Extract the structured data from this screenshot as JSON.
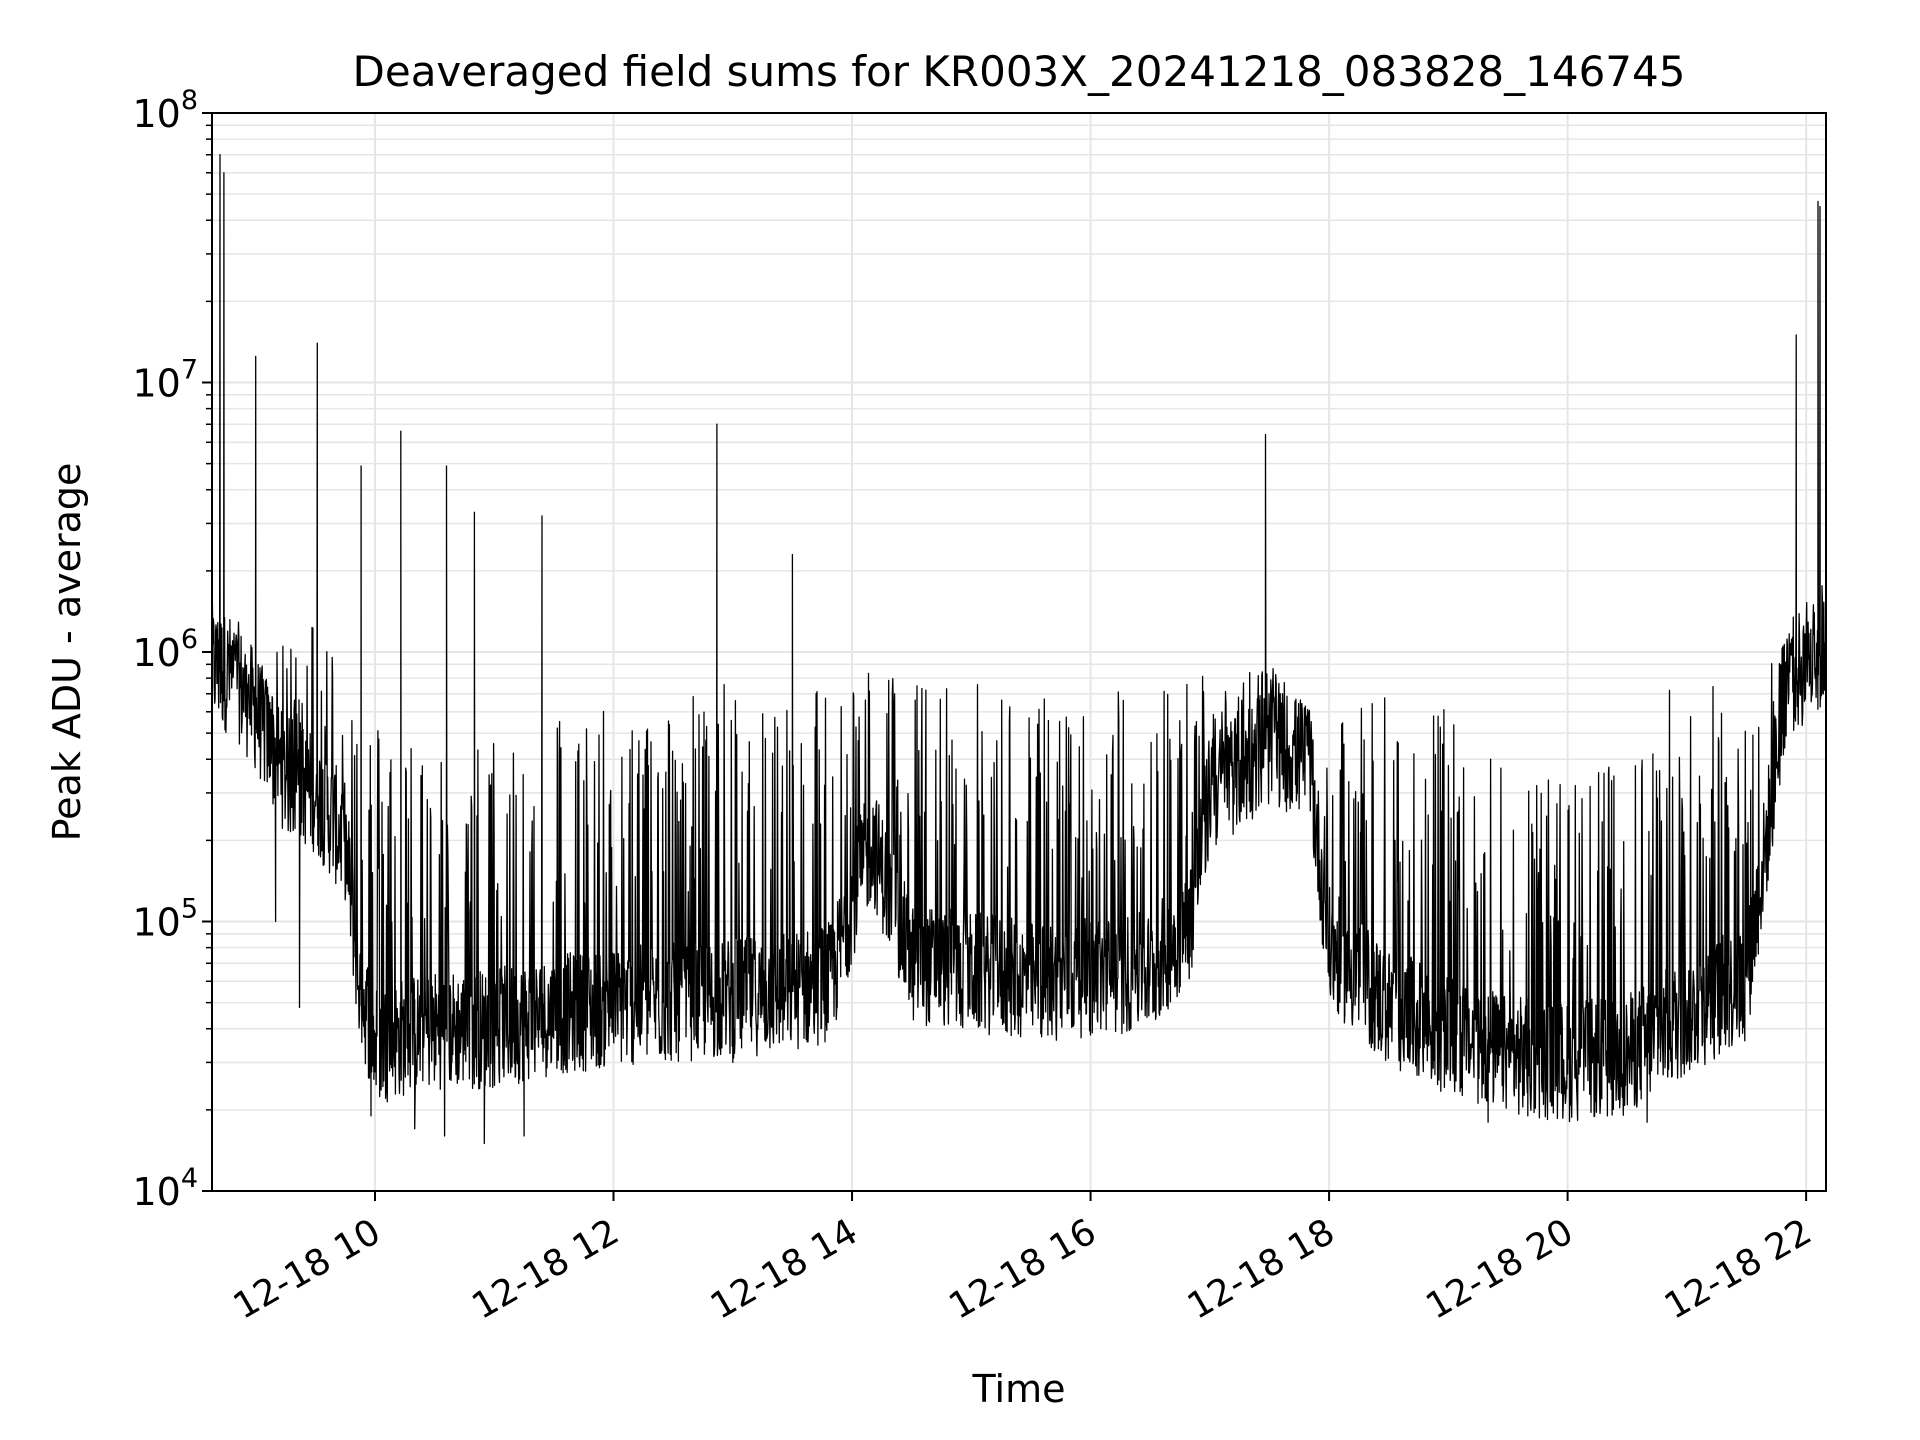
{
  "chart_data": {
    "type": "line",
    "title": "Deaveraged field sums for KR003X_20241218_083828_146745",
    "xlabel": "Time",
    "ylabel": "Peak ADU - average",
    "yscale": "log",
    "ylim": [
      10000,
      100000000
    ],
    "xlim": [
      "12-18 08:38",
      "12-18 22:10"
    ],
    "grid": true,
    "line_color": "#000000",
    "grid_color": "#e6e6e6",
    "x_ticks": [
      {
        "label": "12-18 10",
        "hour": 10
      },
      {
        "label": "12-18 12",
        "hour": 12
      },
      {
        "label": "12-18 14",
        "hour": 14
      },
      {
        "label": "12-18 16",
        "hour": 16
      },
      {
        "label": "12-18 18",
        "hour": 18
      },
      {
        "label": "12-18 20",
        "hour": 20
      },
      {
        "label": "12-18 22",
        "hour": 22
      }
    ],
    "y_ticks": [
      {
        "base": "10",
        "exp": "4",
        "value": 10000
      },
      {
        "base": "10",
        "exp": "5",
        "value": 100000
      },
      {
        "base": "10",
        "exp": "6",
        "value": 1000000
      },
      {
        "base": "10",
        "exp": "7",
        "value": 10000000
      },
      {
        "base": "10",
        "exp": "8",
        "value": 100000000
      }
    ],
    "series": [
      {
        "baseline": [
          [
            "12-18 08:38",
            900000
          ],
          [
            "12-18 08:50",
            800000
          ],
          [
            "12-18 09:00",
            600000
          ],
          [
            "12-18 09:15",
            350000
          ],
          [
            "12-18 09:30",
            300000
          ],
          [
            "12-18 09:45",
            200000
          ],
          [
            "12-18 09:52",
            60000
          ],
          [
            "12-18 10:00",
            35000
          ],
          [
            "12-18 10:30",
            40000
          ],
          [
            "12-18 11:00",
            40000
          ],
          [
            "12-18 11:30",
            45000
          ],
          [
            "12-18 12:00",
            48000
          ],
          [
            "12-18 12:30",
            50000
          ],
          [
            "12-18 13:00",
            52000
          ],
          [
            "12-18 13:30",
            55000
          ],
          [
            "12-18 13:50",
            60000
          ],
          [
            "12-18 14:00",
            120000
          ],
          [
            "12-18 14:10",
            200000
          ],
          [
            "12-18 14:30",
            70000
          ],
          [
            "12-18 15:00",
            65000
          ],
          [
            "12-18 15:30",
            60000
          ],
          [
            "12-18 16:00",
            62000
          ],
          [
            "12-18 16:30",
            65000
          ],
          [
            "12-18 16:50",
            100000
          ],
          [
            "12-18 17:00",
            300000
          ],
          [
            "12-18 17:30",
            450000
          ],
          [
            "12-18 17:50",
            400000
          ],
          [
            "12-18 18:00",
            80000
          ],
          [
            "12-18 18:30",
            48000
          ],
          [
            "12-18 19:00",
            38000
          ],
          [
            "12-18 19:30",
            32000
          ],
          [
            "12-18 20:00",
            30000
          ],
          [
            "12-18 20:30",
            32000
          ],
          [
            "12-18 21:00",
            45000
          ],
          [
            "12-18 21:30",
            60000
          ],
          [
            "12-18 21:40",
            200000
          ],
          [
            "12-18 21:50",
            800000
          ],
          [
            "12-18 22:10",
            1000000
          ]
        ],
        "burst_ceiling": [
          [
            "12-18 08:38",
            1500000
          ],
          [
            "12-18 09:00",
            800000
          ],
          [
            "12-18 09:30",
            1500000
          ],
          [
            "12-18 10:00",
            600000
          ],
          [
            "12-18 10:30",
            500000
          ],
          [
            "12-18 11:00",
            500000
          ],
          [
            "12-18 11:30",
            700000
          ],
          [
            "12-18 12:00",
            600000
          ],
          [
            "12-18 12:30",
            700000
          ],
          [
            "12-18 13:00",
            800000
          ],
          [
            "12-18 13:30",
            700000
          ],
          [
            "12-18 14:00",
            1000000
          ],
          [
            "12-18 14:30",
            800000
          ],
          [
            "12-18 15:00",
            800000
          ],
          [
            "12-18 15:30",
            700000
          ],
          [
            "12-18 16:00",
            700000
          ],
          [
            "12-18 16:30",
            800000
          ],
          [
            "12-18 17:00",
            900000
          ],
          [
            "12-18 17:30",
            900000
          ],
          [
            "12-18 18:00",
            500000
          ],
          [
            "12-18 18:30",
            800000
          ],
          [
            "12-18 19:00",
            600000
          ],
          [
            "12-18 19:30",
            400000
          ],
          [
            "12-18 20:00",
            350000
          ],
          [
            "12-18 20:30",
            400000
          ],
          [
            "12-18 21:00",
            1000000
          ],
          [
            "12-18 21:30",
            700000
          ],
          [
            "12-18 22:10",
            2000000
          ]
        ],
        "spikes": [
          [
            "12-18 08:42",
            70000000
          ],
          [
            "12-18 08:44",
            60000000
          ],
          [
            "12-18 09:00",
            12500000
          ],
          [
            "12-18 09:31",
            14000000
          ],
          [
            "12-18 09:53",
            4900000
          ],
          [
            "12-18 10:13",
            6600000
          ],
          [
            "12-18 10:36",
            4900000
          ],
          [
            "12-18 10:50",
            3300000
          ],
          [
            "12-18 11:24",
            3200000
          ],
          [
            "12-18 12:52",
            7000000
          ],
          [
            "12-18 13:30",
            2300000
          ],
          [
            "12-18 17:28",
            6400000
          ],
          [
            "12-18 21:55",
            15000000
          ],
          [
            "12-18 22:06",
            47000000
          ],
          [
            "12-18 22:07",
            45000000
          ]
        ],
        "dips": [
          [
            "12-18 09:10",
            100000
          ],
          [
            "12-18 09:22",
            48000
          ],
          [
            "12-18 09:58",
            19000
          ],
          [
            "12-18 10:20",
            17000
          ],
          [
            "12-18 10:35",
            16000
          ],
          [
            "12-18 10:55",
            15000
          ],
          [
            "12-18 11:15",
            16000
          ],
          [
            "12-18 13:00",
            30000
          ],
          [
            "12-18 19:20",
            18000
          ],
          [
            "12-18 19:40",
            19000
          ],
          [
            "12-18 20:20",
            19000
          ],
          [
            "12-18 20:40",
            18000
          ]
        ]
      }
    ]
  }
}
